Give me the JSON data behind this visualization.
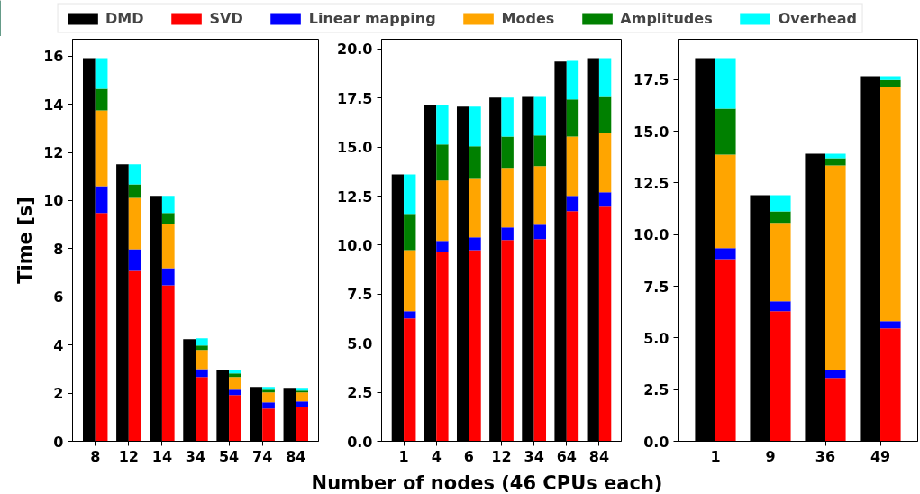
{
  "chart_data": [
    {
      "type": "bar",
      "ylabel": "Time [s]",
      "legend": "top",
      "grid": false,
      "categories": [
        "8",
        "12",
        "14",
        "34",
        "54",
        "74",
        "84"
      ],
      "ylim": [
        0,
        16.7
      ],
      "yticks": [
        0,
        2,
        4,
        6,
        8,
        10,
        12,
        14,
        16
      ],
      "series": [
        {
          "name": "DMD",
          "color": "#000000",
          "values": [
            15.91,
            11.5,
            10.19,
            4.24,
            2.97,
            2.26,
            2.22
          ]
        },
        {
          "name": "SVD",
          "color": "#ff0000",
          "base": [
            0,
            0,
            0,
            0,
            0,
            0,
            0
          ],
          "values": [
            9.48,
            7.08,
            6.48,
            2.67,
            1.92,
            1.36,
            1.4
          ]
        },
        {
          "name": "Linear mapping",
          "color": "#0000ff",
          "base": [
            9.48,
            7.08,
            6.48,
            2.67,
            1.92,
            1.36,
            1.4
          ],
          "values": [
            1.12,
            0.9,
            0.71,
            0.33,
            0.22,
            0.26,
            0.26
          ]
        },
        {
          "name": "Modes",
          "color": "#ffa500",
          "base": [
            10.6,
            7.98,
            7.19,
            3.0,
            2.14,
            1.62,
            1.66
          ],
          "values": [
            3.14,
            2.13,
            1.84,
            0.79,
            0.53,
            0.41,
            0.37
          ]
        },
        {
          "name": "Amplitudes",
          "color": "#008000",
          "base": [
            13.74,
            10.11,
            9.03,
            3.79,
            2.67,
            2.03,
            2.03
          ],
          "values": [
            0.9,
            0.56,
            0.45,
            0.19,
            0.15,
            0.11,
            0.08
          ]
        },
        {
          "name": "Overhead",
          "color": "#00ffff",
          "base": [
            14.64,
            10.67,
            9.48,
            3.98,
            2.82,
            2.14,
            2.11
          ],
          "values": [
            1.27,
            0.83,
            0.71,
            0.3,
            0.15,
            0.12,
            0.11
          ]
        }
      ]
    },
    {
      "type": "bar",
      "xlabel": "Number of nodes (46 CPUs each)",
      "grid": false,
      "categories": [
        "1",
        "4",
        "6",
        "12",
        "34",
        "64",
        "84"
      ],
      "ylim": [
        0,
        20.5
      ],
      "yticks": [
        {
          "value": 0,
          "label": "0.0"
        },
        {
          "value": 2.5,
          "label": "2.5"
        },
        {
          "value": 5,
          "label": "5.0"
        },
        {
          "value": 7.5,
          "label": "7.5"
        },
        {
          "value": 10,
          "label": "10.0"
        },
        {
          "value": 12.5,
          "label": "12.5"
        },
        {
          "value": 15,
          "label": "15.0"
        },
        {
          "value": 17.5,
          "label": "17.5"
        },
        {
          "value": 20,
          "label": "20.0"
        }
      ],
      "series": [
        {
          "color": "#000000",
          "values": [
            13.61,
            17.15,
            17.06,
            17.52,
            17.56,
            19.36,
            19.54
          ]
        },
        {
          "color": "#ff0000",
          "base": [
            0,
            0,
            0,
            0,
            0,
            0,
            0
          ],
          "values": [
            6.26,
            9.66,
            9.75,
            10.26,
            10.31,
            11.73,
            11.96
          ]
        },
        {
          "color": "#0000ff",
          "base": [
            6.26,
            9.66,
            9.75,
            10.26,
            10.31,
            11.73,
            11.96
          ],
          "values": [
            0.37,
            0.55,
            0.65,
            0.64,
            0.73,
            0.78,
            0.74
          ]
        },
        {
          "color": "#ffa500",
          "base": [
            6.63,
            10.21,
            10.4,
            10.9,
            11.04,
            12.51,
            12.7
          ],
          "values": [
            3.12,
            3.08,
            2.98,
            3.04,
            2.99,
            3.03,
            3.03
          ]
        },
        {
          "color": "#008000",
          "base": [
            9.75,
            13.29,
            13.38,
            13.94,
            14.03,
            15.54,
            15.73
          ],
          "values": [
            1.84,
            1.84,
            1.66,
            1.6,
            1.56,
            1.89,
            1.83
          ]
        },
        {
          "color": "#00ffff",
          "base": [
            11.59,
            15.13,
            15.04,
            15.54,
            15.59,
            17.43,
            17.56
          ],
          "values": [
            2.02,
            2.02,
            2.02,
            1.98,
            1.97,
            1.97,
            1.98
          ]
        }
      ]
    },
    {
      "type": "bar",
      "grid": false,
      "categories": [
        "1",
        "9",
        "36",
        "49"
      ],
      "ylim": [
        0,
        19.45
      ],
      "yticks": [
        {
          "value": 0,
          "label": "0.0"
        },
        {
          "value": 2.5,
          "label": "2.5"
        },
        {
          "value": 5,
          "label": "5.0"
        },
        {
          "value": 7.5,
          "label": "7.5"
        },
        {
          "value": 10,
          "label": "10.0"
        },
        {
          "value": 12.5,
          "label": "12.5"
        },
        {
          "value": 15,
          "label": "15.0"
        },
        {
          "value": 17.5,
          "label": "17.5"
        }
      ],
      "series": [
        {
          "color": "#000000",
          "values": [
            18.53,
            11.91,
            13.91,
            17.66
          ]
        },
        {
          "color": "#ff0000",
          "base": [
            0,
            0,
            0,
            0
          ],
          "values": [
            8.81,
            6.29,
            3.06,
            5.46
          ]
        },
        {
          "color": "#0000ff",
          "base": [
            8.81,
            6.29,
            3.06,
            5.46
          ],
          "values": [
            0.53,
            0.48,
            0.4,
            0.35
          ]
        },
        {
          "color": "#ffa500",
          "base": [
            9.34,
            6.77,
            3.46,
            5.81
          ],
          "values": [
            4.53,
            3.79,
            9.89,
            11.33
          ]
        },
        {
          "color": "#008000",
          "base": [
            13.87,
            10.56,
            13.35,
            17.14
          ],
          "values": [
            2.22,
            0.56,
            0.34,
            0.34
          ]
        },
        {
          "color": "#00ffff",
          "base": [
            16.09,
            11.12,
            13.69,
            17.48
          ],
          "values": [
            2.44,
            0.79,
            0.22,
            0.18
          ]
        }
      ]
    }
  ]
}
